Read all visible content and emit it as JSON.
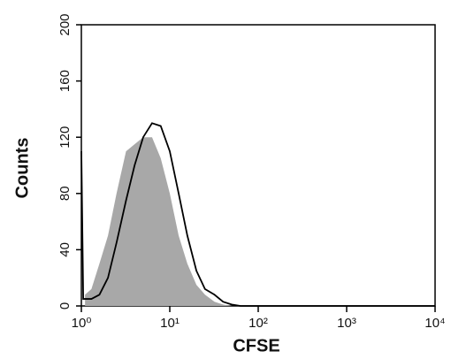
{
  "chart_data": {
    "type": "line",
    "xlabel": "CFSE",
    "ylabel": "Counts",
    "xscale": "log",
    "x": [
      1,
      1.05,
      1.1,
      1.3,
      1.6,
      2,
      2.5,
      3.2,
      4,
      5,
      6.3,
      7.9,
      10,
      12.6,
      15.8,
      20,
      25,
      32,
      40,
      50,
      63,
      100,
      1000,
      10000
    ],
    "series": [
      {
        "color": "#a8a8a8",
        "filled": true,
        "values": [
          null,
          null,
          8,
          12,
          30,
          50,
          80,
          110,
          115,
          120,
          120,
          105,
          80,
          50,
          30,
          15,
          8,
          3,
          1,
          0,
          0,
          0,
          0,
          0
        ]
      },
      {
        "color": "#000000",
        "filled": false,
        "values": [
          110,
          5,
          5,
          5,
          8,
          20,
          45,
          75,
          100,
          120,
          130,
          128,
          110,
          80,
          50,
          25,
          12,
          8,
          3,
          1,
          0,
          0,
          0,
          0
        ]
      }
    ],
    "xlim": [
      1,
      10000
    ],
    "xticks": [
      {
        "value": 1,
        "label": "10⁰"
      },
      {
        "value": 10,
        "label": "10¹"
      },
      {
        "value": 100,
        "label": "10²"
      },
      {
        "value": 1000,
        "label": "10³"
      },
      {
        "value": 10000,
        "label": "10⁴"
      }
    ],
    "ylim": [
      0,
      200
    ],
    "yticks": [
      0,
      40,
      80,
      120,
      160,
      200
    ]
  }
}
